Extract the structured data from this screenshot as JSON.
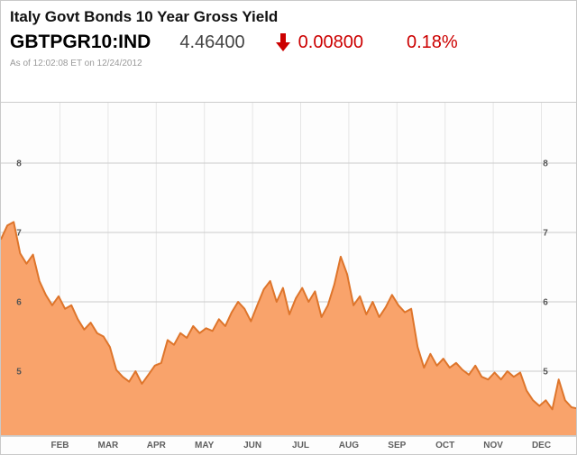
{
  "header": {
    "title": "Italy Govt Bonds 10 Year Gross Yield",
    "ticker": "GBTPGR10:IND",
    "price": "4.46400",
    "change": "0.00800",
    "change_pct": "0.18%",
    "direction": "down",
    "as_of": "As of 12:02:08 ET on 12/24/2012"
  },
  "colors": {
    "negative_red": "#cc0000",
    "area_fill": "#F9A36B",
    "area_line": "#DE752B",
    "grid_line": "#cccccc",
    "grid_line_vertical": "#e6e6e6",
    "tick_text": "#555555"
  },
  "chart_data": {
    "type": "area",
    "title": "Italy Govt Bonds 10 Year Gross Yield",
    "series_name": "GBTPGR10:IND gross yield (%)",
    "period": "Jan 2012 - Dec 24 2012, points evenly spaced",
    "ylim": [
      4.1,
      8.4
    ],
    "yticks": [
      5,
      6,
      7,
      8
    ],
    "x_labels": [
      "FEB",
      "MAR",
      "APR",
      "MAY",
      "JUN",
      "JUL",
      "AUG",
      "SEP",
      "OCT",
      "NOV",
      "DEC"
    ],
    "grid": true,
    "legend": "none",
    "values": [
      6.9,
      7.1,
      7.15,
      6.7,
      6.55,
      6.68,
      6.3,
      6.1,
      5.95,
      6.08,
      5.9,
      5.95,
      5.75,
      5.6,
      5.7,
      5.55,
      5.5,
      5.35,
      5.02,
      4.92,
      4.85,
      5.0,
      4.82,
      4.95,
      5.08,
      5.12,
      5.45,
      5.38,
      5.55,
      5.48,
      5.65,
      5.55,
      5.62,
      5.58,
      5.75,
      5.65,
      5.85,
      6.0,
      5.9,
      5.72,
      5.95,
      6.18,
      6.3,
      6.0,
      6.2,
      5.82,
      6.05,
      6.2,
      6.0,
      6.15,
      5.78,
      5.95,
      6.25,
      6.65,
      6.4,
      5.95,
      6.08,
      5.82,
      6.0,
      5.78,
      5.92,
      6.1,
      5.95,
      5.85,
      5.9,
      5.35,
      5.05,
      5.25,
      5.08,
      5.18,
      5.05,
      5.12,
      5.02,
      4.95,
      5.08,
      4.92,
      4.88,
      4.98,
      4.88,
      5.0,
      4.92,
      4.98,
      4.72,
      4.58,
      4.5,
      4.58,
      4.45,
      4.88,
      4.58,
      4.48,
      4.46
    ]
  }
}
